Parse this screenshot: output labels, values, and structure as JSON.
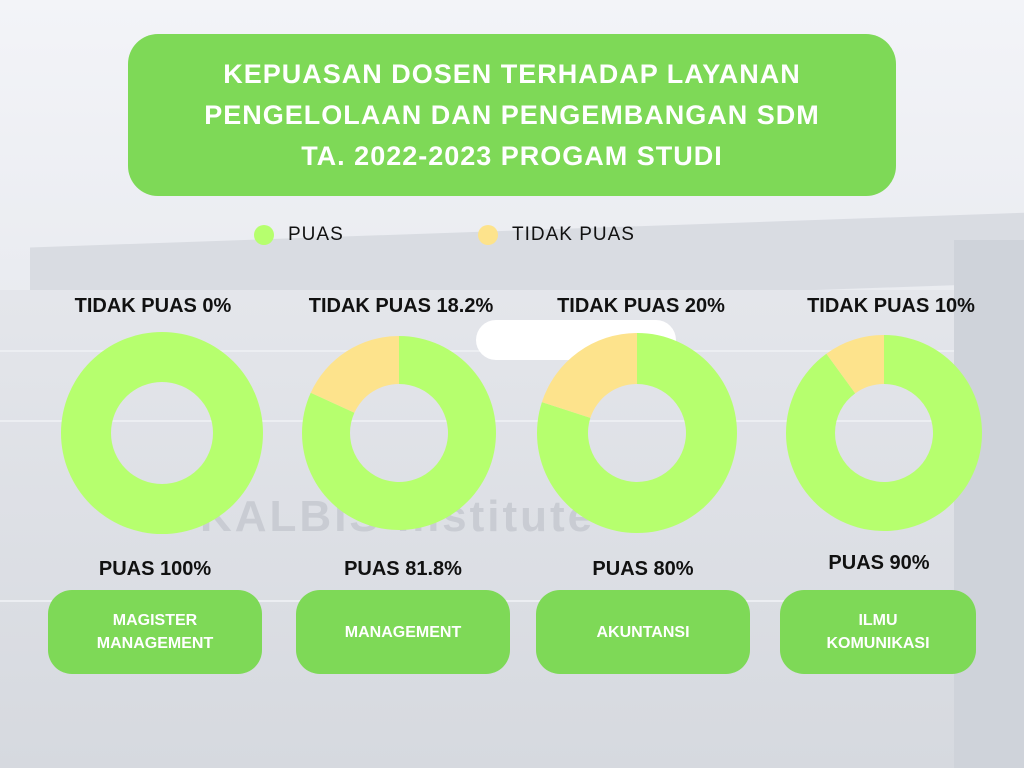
{
  "header": {
    "title_lines": [
      "KEPUASAN DOSEN TERHADAP LAYANAN",
      "PENGELOLAAN DAN PENGEMBANGAN SDM",
      "TA. 2022-2023 PROGAM STUDI"
    ]
  },
  "legend": [
    {
      "label": "PUAS",
      "color": "#b6ff6e"
    },
    {
      "label": "TIDAK PUAS",
      "color": "#fde38c"
    }
  ],
  "colors": {
    "puas": "#b6ff6e",
    "tidak_puas": "#fde38c",
    "accent": "#7ed957"
  },
  "chart_data": {
    "type": "pie",
    "series": [
      {
        "category": "MAGISTER\nMANAGEMENT",
        "puas": 100,
        "tidak_puas": 0,
        "tidak_label": "TIDAK PUAS 0%",
        "puas_label": "PUAS 100%"
      },
      {
        "category": "MANAGEMENT",
        "puas": 81.8,
        "tidak_puas": 18.2,
        "tidak_label": "TIDAK PUAS 18.2%",
        "puas_label": "PUAS 81.8%"
      },
      {
        "category": "AKUNTANSI",
        "puas": 80,
        "tidak_puas": 20,
        "tidak_label": "TIDAK PUAS 20%",
        "puas_label": "PUAS 80%"
      },
      {
        "category": "ILMU\nKOMUNIKASI",
        "puas": 90,
        "tidak_puas": 10,
        "tidak_label": "TIDAK PUAS 10%",
        "puas_label": "PUAS 90%"
      }
    ]
  }
}
